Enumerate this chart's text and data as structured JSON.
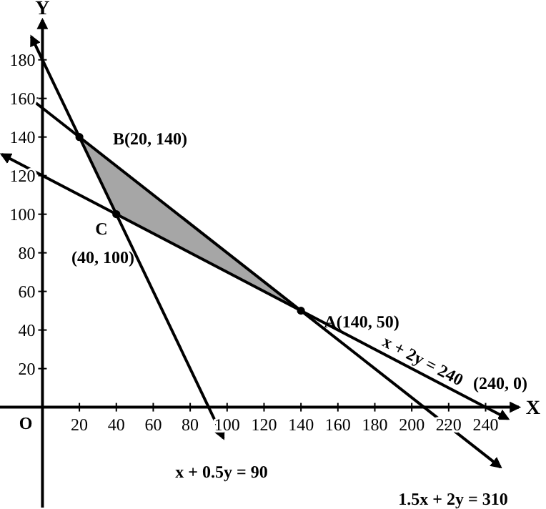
{
  "chart_data": {
    "type": "line",
    "xlabel": "X",
    "ylabel": "Y",
    "xlim": [
      -23,
      258
    ],
    "ylim": [
      -52,
      211
    ],
    "xticks": [
      20,
      40,
      60,
      80,
      100,
      120,
      140,
      160,
      180,
      200,
      220,
      240
    ],
    "yticks": [
      20,
      40,
      60,
      80,
      100,
      120,
      140,
      160,
      180
    ],
    "grid": false,
    "line_style": "solid",
    "marker": "none",
    "series": [
      {
        "color": "#000000",
        "x": [
          -6,
          98
        ],
        "values": [
          192,
          -16
        ]
      },
      {
        "color": "#000000",
        "x": [
          -8,
          248
        ],
        "values": [
          161,
          -31
        ]
      },
      {
        "color": "#000000",
        "x": [
          -22,
          252
        ],
        "values": [
          131,
          -6
        ]
      },
      {
        "type": "scatter",
        "color": "#000000",
        "marker": "circle",
        "x": [
          20,
          40,
          140
        ],
        "values": [
          140,
          100,
          50
        ]
      }
    ],
    "annotations": [
      "B(20, 140)",
      "C",
      "(40, 100)",
      "A(140, 50)",
      "x + 2y = 240",
      "(240, 0)",
      "x + 0.5y = 90",
      "1.5x + 2y = 310",
      "O"
    ]
  }
}
